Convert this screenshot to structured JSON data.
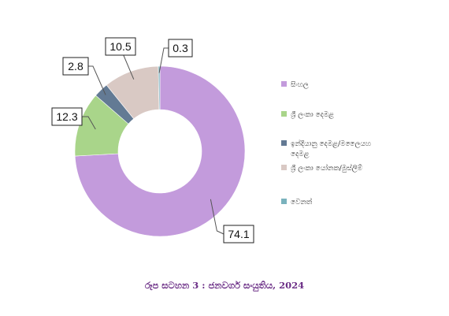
{
  "chart_data": {
    "type": "pie",
    "donut": true,
    "categories": [
      "සිංහල",
      "ශ්‍රී ලංකා දෙමළ",
      "ඉන්දියානු දෙමළ/මලෛයහ දෙමළ",
      "ශ්‍රී ලංකා යෝනක/මුස්ලිම්",
      "වෙනත්"
    ],
    "values": [
      74.1,
      12.3,
      2.8,
      10.5,
      0.3
    ],
    "colors": [
      "#c39bdc",
      "#a9d58a",
      "#637a94",
      "#d9c9c4",
      "#7ab2bd"
    ],
    "data_labels": [
      "74.1",
      "12.3",
      "2.8",
      "10.5",
      "0.3"
    ],
    "legend_position": "right",
    "caption": "රූප සටහන 3 : ජනවර්ග සංයුතිය, 2024"
  }
}
